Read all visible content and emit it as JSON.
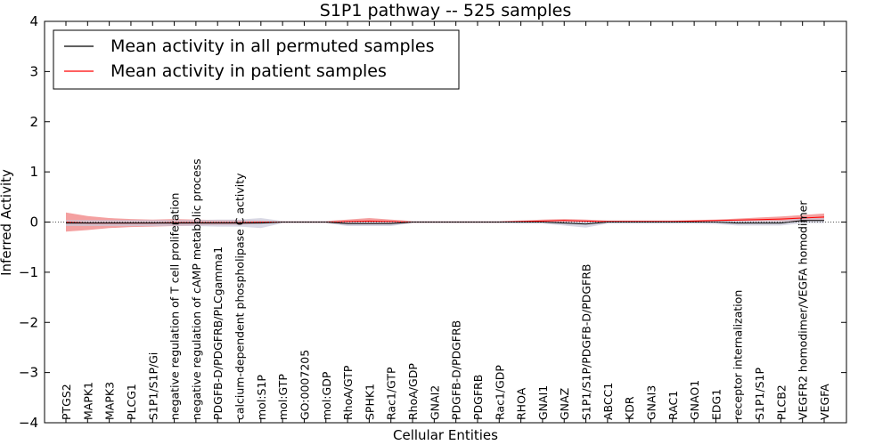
{
  "chart_data": {
    "type": "line",
    "title": "S1P1 pathway -- 525 samples",
    "xlabel": "Cellular Entities",
    "ylabel": "Inferred Activity",
    "ylim": [
      -4,
      4
    ],
    "yticks": [
      -4,
      -3,
      -2,
      -1,
      0,
      1,
      2,
      3,
      4
    ],
    "grid": false,
    "legend_position": "top-left",
    "categories": [
      "PTGS2",
      "MAPK1",
      "MAPK3",
      "PLCG1",
      "S1P1/S1P/Gi",
      "negative regulation of T cell proliferation",
      "negative regulation of cAMP metabolic process",
      "PDGFB-D/PDGFRB/PLCgamma1",
      "calcium-dependent phospholipase C activity",
      "mol:S1P",
      "mol:GTP",
      "GO:0007205",
      "mol:GDP",
      "RhoA/GTP",
      "SPHK1",
      "Rac1/GTP",
      "RhoA/GDP",
      "GNAI2",
      "PDGFB-D/PDGFRB",
      "PDGFRB",
      "Rac1/GDP",
      "RHOA",
      "GNAI1",
      "GNAZ",
      "S1P1/S1P/PDGFB-D/PDGFRB",
      "ABCC1",
      "KDR",
      "GNAI3",
      "RAC1",
      "GNAO1",
      "EDG1",
      "receptor internalization",
      "S1P1/S1P",
      "PLCB2",
      "VEGFR2 homodimer/VEGFA homodimer",
      "VEGFA"
    ],
    "series": [
      {
        "name": "Mean activity in all permuted samples",
        "color": "#000000",
        "band_color": "#c8c8d8",
        "values": [
          -0.02,
          -0.02,
          -0.02,
          -0.02,
          -0.02,
          -0.02,
          -0.02,
          -0.02,
          -0.02,
          -0.02,
          0,
          0,
          0,
          -0.03,
          -0.03,
          -0.03,
          0,
          0,
          0,
          0,
          0,
          0,
          0,
          -0.02,
          -0.04,
          0,
          0,
          0,
          0,
          0,
          0,
          -0.02,
          -0.02,
          -0.02,
          0.03,
          0.03
        ],
        "band": [
          0.06,
          0.06,
          0.06,
          0.06,
          0.06,
          0.06,
          0.06,
          0.07,
          0.07,
          0.1,
          0.02,
          0.02,
          0.02,
          0.05,
          0.05,
          0.05,
          0.02,
          0.02,
          0.02,
          0.02,
          0.02,
          0.03,
          0.03,
          0.05,
          0.07,
          0.03,
          0.03,
          0.03,
          0.03,
          0.03,
          0.04,
          0.05,
          0.05,
          0.05,
          0.05,
          0.05
        ]
      },
      {
        "name": "Mean activity in patient samples",
        "color": "#ff0000",
        "band_color": "#f08080",
        "values": [
          0,
          -0.02,
          -0.02,
          -0.02,
          -0.02,
          -0.01,
          -0.01,
          -0.01,
          -0.01,
          0,
          0,
          0,
          0,
          0.01,
          0.02,
          0.01,
          0,
          0,
          0,
          0,
          0,
          0.01,
          0.02,
          0.03,
          0.02,
          0.01,
          0.01,
          0.01,
          0.01,
          0.02,
          0.03,
          0.04,
          0.05,
          0.06,
          0.08,
          0.1
        ],
        "band": [
          0.19,
          0.14,
          0.1,
          0.08,
          0.07,
          0.07,
          0.06,
          0.05,
          0.05,
          0.03,
          0.02,
          0.02,
          0.02,
          0.04,
          0.06,
          0.04,
          0.02,
          0.02,
          0.02,
          0.02,
          0.02,
          0.02,
          0.03,
          0.03,
          0.03,
          0.02,
          0.02,
          0.02,
          0.02,
          0.02,
          0.02,
          0.03,
          0.04,
          0.05,
          0.06,
          0.07
        ]
      }
    ]
  }
}
